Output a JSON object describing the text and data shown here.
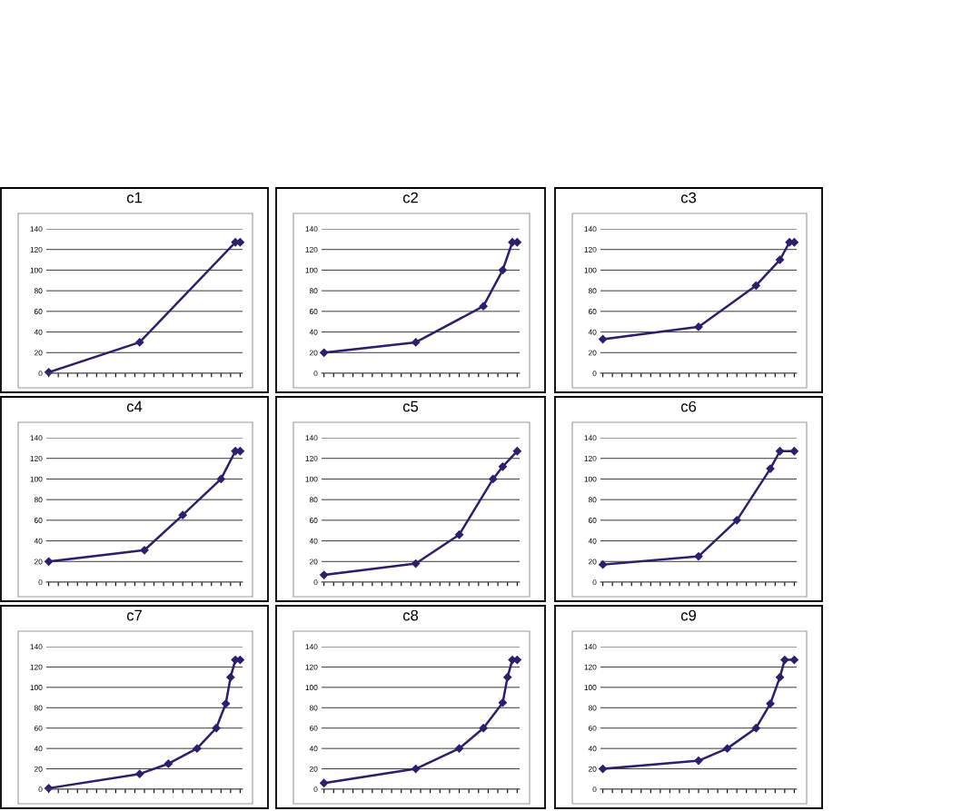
{
  "chart_data": [
    {
      "type": "line",
      "title": "c1",
      "categories": [
        null,
        null,
        null,
        null,
        null,
        null,
        null,
        null,
        null,
        null,
        null,
        null,
        null,
        null,
        null,
        null,
        null,
        null,
        null,
        null,
        null,
        null,
        null,
        null,
        null,
        null,
        null,
        null,
        null,
        null,
        null,
        null,
        null,
        null,
        null,
        null,
        null,
        null,
        null,
        null,
        null
      ],
      "series": [
        {
          "color": "#2e1f6e",
          "values": [
            1,
            null,
            null,
            null,
            null,
            null,
            null,
            null,
            null,
            null,
            null,
            null,
            null,
            null,
            null,
            null,
            null,
            null,
            null,
            30,
            null,
            null,
            null,
            null,
            null,
            null,
            null,
            null,
            null,
            null,
            null,
            null,
            null,
            null,
            null,
            null,
            null,
            null,
            null,
            127,
            127
          ]
        }
      ],
      "ylim": [
        0,
        140
      ],
      "yticks": [
        0,
        20,
        40,
        60,
        80,
        100,
        120,
        140
      ],
      "grid": "y",
      "marker": "diamond",
      "tick_labels": "y"
    },
    {
      "type": "line",
      "title": "c2",
      "categories": [
        null,
        null,
        null,
        null,
        null,
        null,
        null,
        null,
        null,
        null,
        null,
        null,
        null,
        null,
        null,
        null,
        null,
        null,
        null,
        null,
        null,
        null,
        null,
        null,
        null,
        null,
        null,
        null,
        null,
        null,
        null,
        null,
        null,
        null,
        null,
        null,
        null,
        null,
        null,
        null,
        null
      ],
      "series": [
        {
          "color": "#2e1f6e",
          "values": [
            20,
            null,
            null,
            null,
            null,
            null,
            null,
            null,
            null,
            null,
            null,
            null,
            null,
            null,
            null,
            null,
            null,
            null,
            null,
            30,
            null,
            null,
            null,
            null,
            null,
            null,
            null,
            null,
            null,
            null,
            null,
            null,
            null,
            65,
            null,
            null,
            null,
            100,
            null,
            127,
            127
          ]
        }
      ],
      "ylim": [
        0,
        140
      ],
      "yticks": [
        0,
        20,
        40,
        60,
        80,
        100,
        120,
        140
      ],
      "grid": "y",
      "marker": "diamond",
      "tick_labels": "y"
    },
    {
      "type": "line",
      "title": "c3",
      "categories": [
        null,
        null,
        null,
        null,
        null,
        null,
        null,
        null,
        null,
        null,
        null,
        null,
        null,
        null,
        null,
        null,
        null,
        null,
        null,
        null,
        null,
        null,
        null,
        null,
        null,
        null,
        null,
        null,
        null,
        null,
        null,
        null,
        null,
        null,
        null,
        null,
        null,
        null,
        null,
        null,
        null
      ],
      "series": [
        {
          "color": "#2e1f6e",
          "values": [
            33,
            null,
            null,
            null,
            null,
            null,
            null,
            null,
            null,
            null,
            null,
            null,
            null,
            null,
            null,
            null,
            null,
            null,
            null,
            null,
            45,
            null,
            null,
            null,
            null,
            null,
            null,
            null,
            null,
            null,
            null,
            null,
            85,
            null,
            null,
            null,
            null,
            110,
            null,
            127,
            127
          ]
        }
      ],
      "ylim": [
        0,
        140
      ],
      "yticks": [
        0,
        20,
        40,
        60,
        80,
        100,
        120,
        140
      ],
      "grid": "y",
      "marker": "diamond",
      "tick_labels": "y"
    },
    {
      "type": "line",
      "title": "c4",
      "categories": [
        null,
        null,
        null,
        null,
        null,
        null,
        null,
        null,
        null,
        null,
        null,
        null,
        null,
        null,
        null,
        null,
        null,
        null,
        null,
        null,
        null,
        null,
        null,
        null,
        null,
        null,
        null,
        null,
        null,
        null,
        null,
        null,
        null,
        null,
        null,
        null,
        null,
        null,
        null,
        null,
        null
      ],
      "series": [
        {
          "color": "#2e1f6e",
          "values": [
            20,
            null,
            null,
            null,
            null,
            null,
            null,
            null,
            null,
            null,
            null,
            null,
            null,
            null,
            null,
            null,
            null,
            null,
            null,
            null,
            31,
            null,
            null,
            null,
            null,
            null,
            null,
            null,
            65,
            null,
            null,
            null,
            null,
            null,
            null,
            null,
            100,
            null,
            null,
            127,
            127
          ]
        }
      ],
      "ylim": [
        0,
        140
      ],
      "yticks": [
        0,
        20,
        40,
        60,
        80,
        100,
        120,
        140
      ],
      "grid": "y",
      "marker": "diamond",
      "tick_labels": "y"
    },
    {
      "type": "line",
      "title": "c5",
      "categories": [
        null,
        null,
        null,
        null,
        null,
        null,
        null,
        null,
        null,
        null,
        null,
        null,
        null,
        null,
        null,
        null,
        null,
        null,
        null,
        null,
        null,
        null,
        null,
        null,
        null,
        null,
        null,
        null,
        null,
        null,
        null,
        null,
        null,
        null,
        null,
        null,
        null,
        null,
        null,
        null,
        null
      ],
      "series": [
        {
          "color": "#2e1f6e",
          "values": [
            7,
            null,
            null,
            null,
            null,
            null,
            null,
            null,
            null,
            null,
            null,
            null,
            null,
            null,
            null,
            null,
            null,
            null,
            null,
            18,
            null,
            null,
            null,
            null,
            null,
            null,
            null,
            null,
            46,
            null,
            null,
            null,
            null,
            null,
            null,
            100,
            null,
            112,
            null,
            null,
            127
          ]
        }
      ],
      "ylim": [
        0,
        140
      ],
      "yticks": [
        0,
        20,
        40,
        60,
        80,
        100,
        120,
        140
      ],
      "grid": "y",
      "marker": "diamond",
      "tick_labels": "y"
    },
    {
      "type": "line",
      "title": "c6",
      "categories": [
        null,
        null,
        null,
        null,
        null,
        null,
        null,
        null,
        null,
        null,
        null,
        null,
        null,
        null,
        null,
        null,
        null,
        null,
        null,
        null,
        null,
        null,
        null,
        null,
        null,
        null,
        null,
        null,
        null,
        null,
        null,
        null,
        null,
        null,
        null,
        null,
        null,
        null,
        null,
        null,
        null
      ],
      "series": [
        {
          "color": "#2e1f6e",
          "values": [
            17,
            null,
            null,
            null,
            null,
            null,
            null,
            null,
            null,
            null,
            null,
            null,
            null,
            null,
            null,
            null,
            null,
            null,
            null,
            null,
            25,
            null,
            null,
            null,
            null,
            null,
            null,
            null,
            60,
            null,
            null,
            null,
            null,
            null,
            null,
            110,
            null,
            127,
            null,
            null,
            127
          ]
        }
      ],
      "ylim": [
        0,
        140
      ],
      "yticks": [
        0,
        20,
        40,
        60,
        80,
        100,
        120,
        140
      ],
      "grid": "y",
      "marker": "diamond",
      "tick_labels": "y"
    },
    {
      "type": "line",
      "title": "c7",
      "categories": [
        null,
        null,
        null,
        null,
        null,
        null,
        null,
        null,
        null,
        null,
        null,
        null,
        null,
        null,
        null,
        null,
        null,
        null,
        null,
        null,
        null,
        null,
        null,
        null,
        null,
        null,
        null,
        null,
        null,
        null,
        null,
        null,
        null,
        null,
        null,
        null,
        null,
        null,
        null,
        null,
        null
      ],
      "series": [
        {
          "color": "#2e1f6e",
          "values": [
            1,
            null,
            null,
            null,
            null,
            null,
            null,
            null,
            null,
            null,
            null,
            null,
            null,
            null,
            null,
            null,
            null,
            null,
            null,
            15,
            null,
            null,
            null,
            null,
            null,
            25,
            null,
            null,
            null,
            null,
            null,
            40,
            null,
            null,
            null,
            60,
            null,
            84,
            110,
            127,
            127
          ]
        }
      ],
      "ylim": [
        0,
        140
      ],
      "yticks": [
        0,
        20,
        40,
        60,
        80,
        100,
        120,
        140
      ],
      "grid": "y",
      "marker": "diamond",
      "tick_labels": "y"
    },
    {
      "type": "line",
      "title": "c8",
      "categories": [
        null,
        null,
        null,
        null,
        null,
        null,
        null,
        null,
        null,
        null,
        null,
        null,
        null,
        null,
        null,
        null,
        null,
        null,
        null,
        null,
        null,
        null,
        null,
        null,
        null,
        null,
        null,
        null,
        null,
        null,
        null,
        null,
        null,
        null,
        null,
        null,
        null,
        null,
        null,
        null,
        null
      ],
      "series": [
        {
          "color": "#2e1f6e",
          "values": [
            6,
            null,
            null,
            null,
            null,
            null,
            null,
            null,
            null,
            null,
            null,
            null,
            null,
            null,
            null,
            null,
            null,
            null,
            null,
            20,
            null,
            null,
            null,
            null,
            null,
            null,
            null,
            null,
            40,
            null,
            null,
            null,
            null,
            60,
            null,
            null,
            null,
            85,
            110,
            127,
            127
          ]
        }
      ],
      "ylim": [
        0,
        140
      ],
      "yticks": [
        0,
        20,
        40,
        60,
        80,
        100,
        120,
        140
      ],
      "grid": "y",
      "marker": "diamond",
      "tick_labels": "y"
    },
    {
      "type": "line",
      "title": "c9",
      "categories": [
        null,
        null,
        null,
        null,
        null,
        null,
        null,
        null,
        null,
        null,
        null,
        null,
        null,
        null,
        null,
        null,
        null,
        null,
        null,
        null,
        null,
        null,
        null,
        null,
        null,
        null,
        null,
        null,
        null,
        null,
        null,
        null,
        null,
        null,
        null,
        null,
        null,
        null,
        null,
        null,
        null
      ],
      "series": [
        {
          "color": "#2e1f6e",
          "values": [
            20,
            null,
            null,
            null,
            null,
            null,
            null,
            null,
            null,
            null,
            null,
            null,
            null,
            null,
            null,
            null,
            null,
            null,
            null,
            null,
            28,
            null,
            null,
            null,
            null,
            null,
            40,
            null,
            null,
            null,
            null,
            null,
            60,
            null,
            null,
            84,
            null,
            110,
            127,
            null,
            127
          ]
        }
      ],
      "ylim": [
        0,
        140
      ],
      "yticks": [
        0,
        20,
        40,
        60,
        80,
        100,
        120,
        140
      ],
      "grid": "y",
      "marker": "diamond",
      "tick_labels": "y"
    }
  ]
}
